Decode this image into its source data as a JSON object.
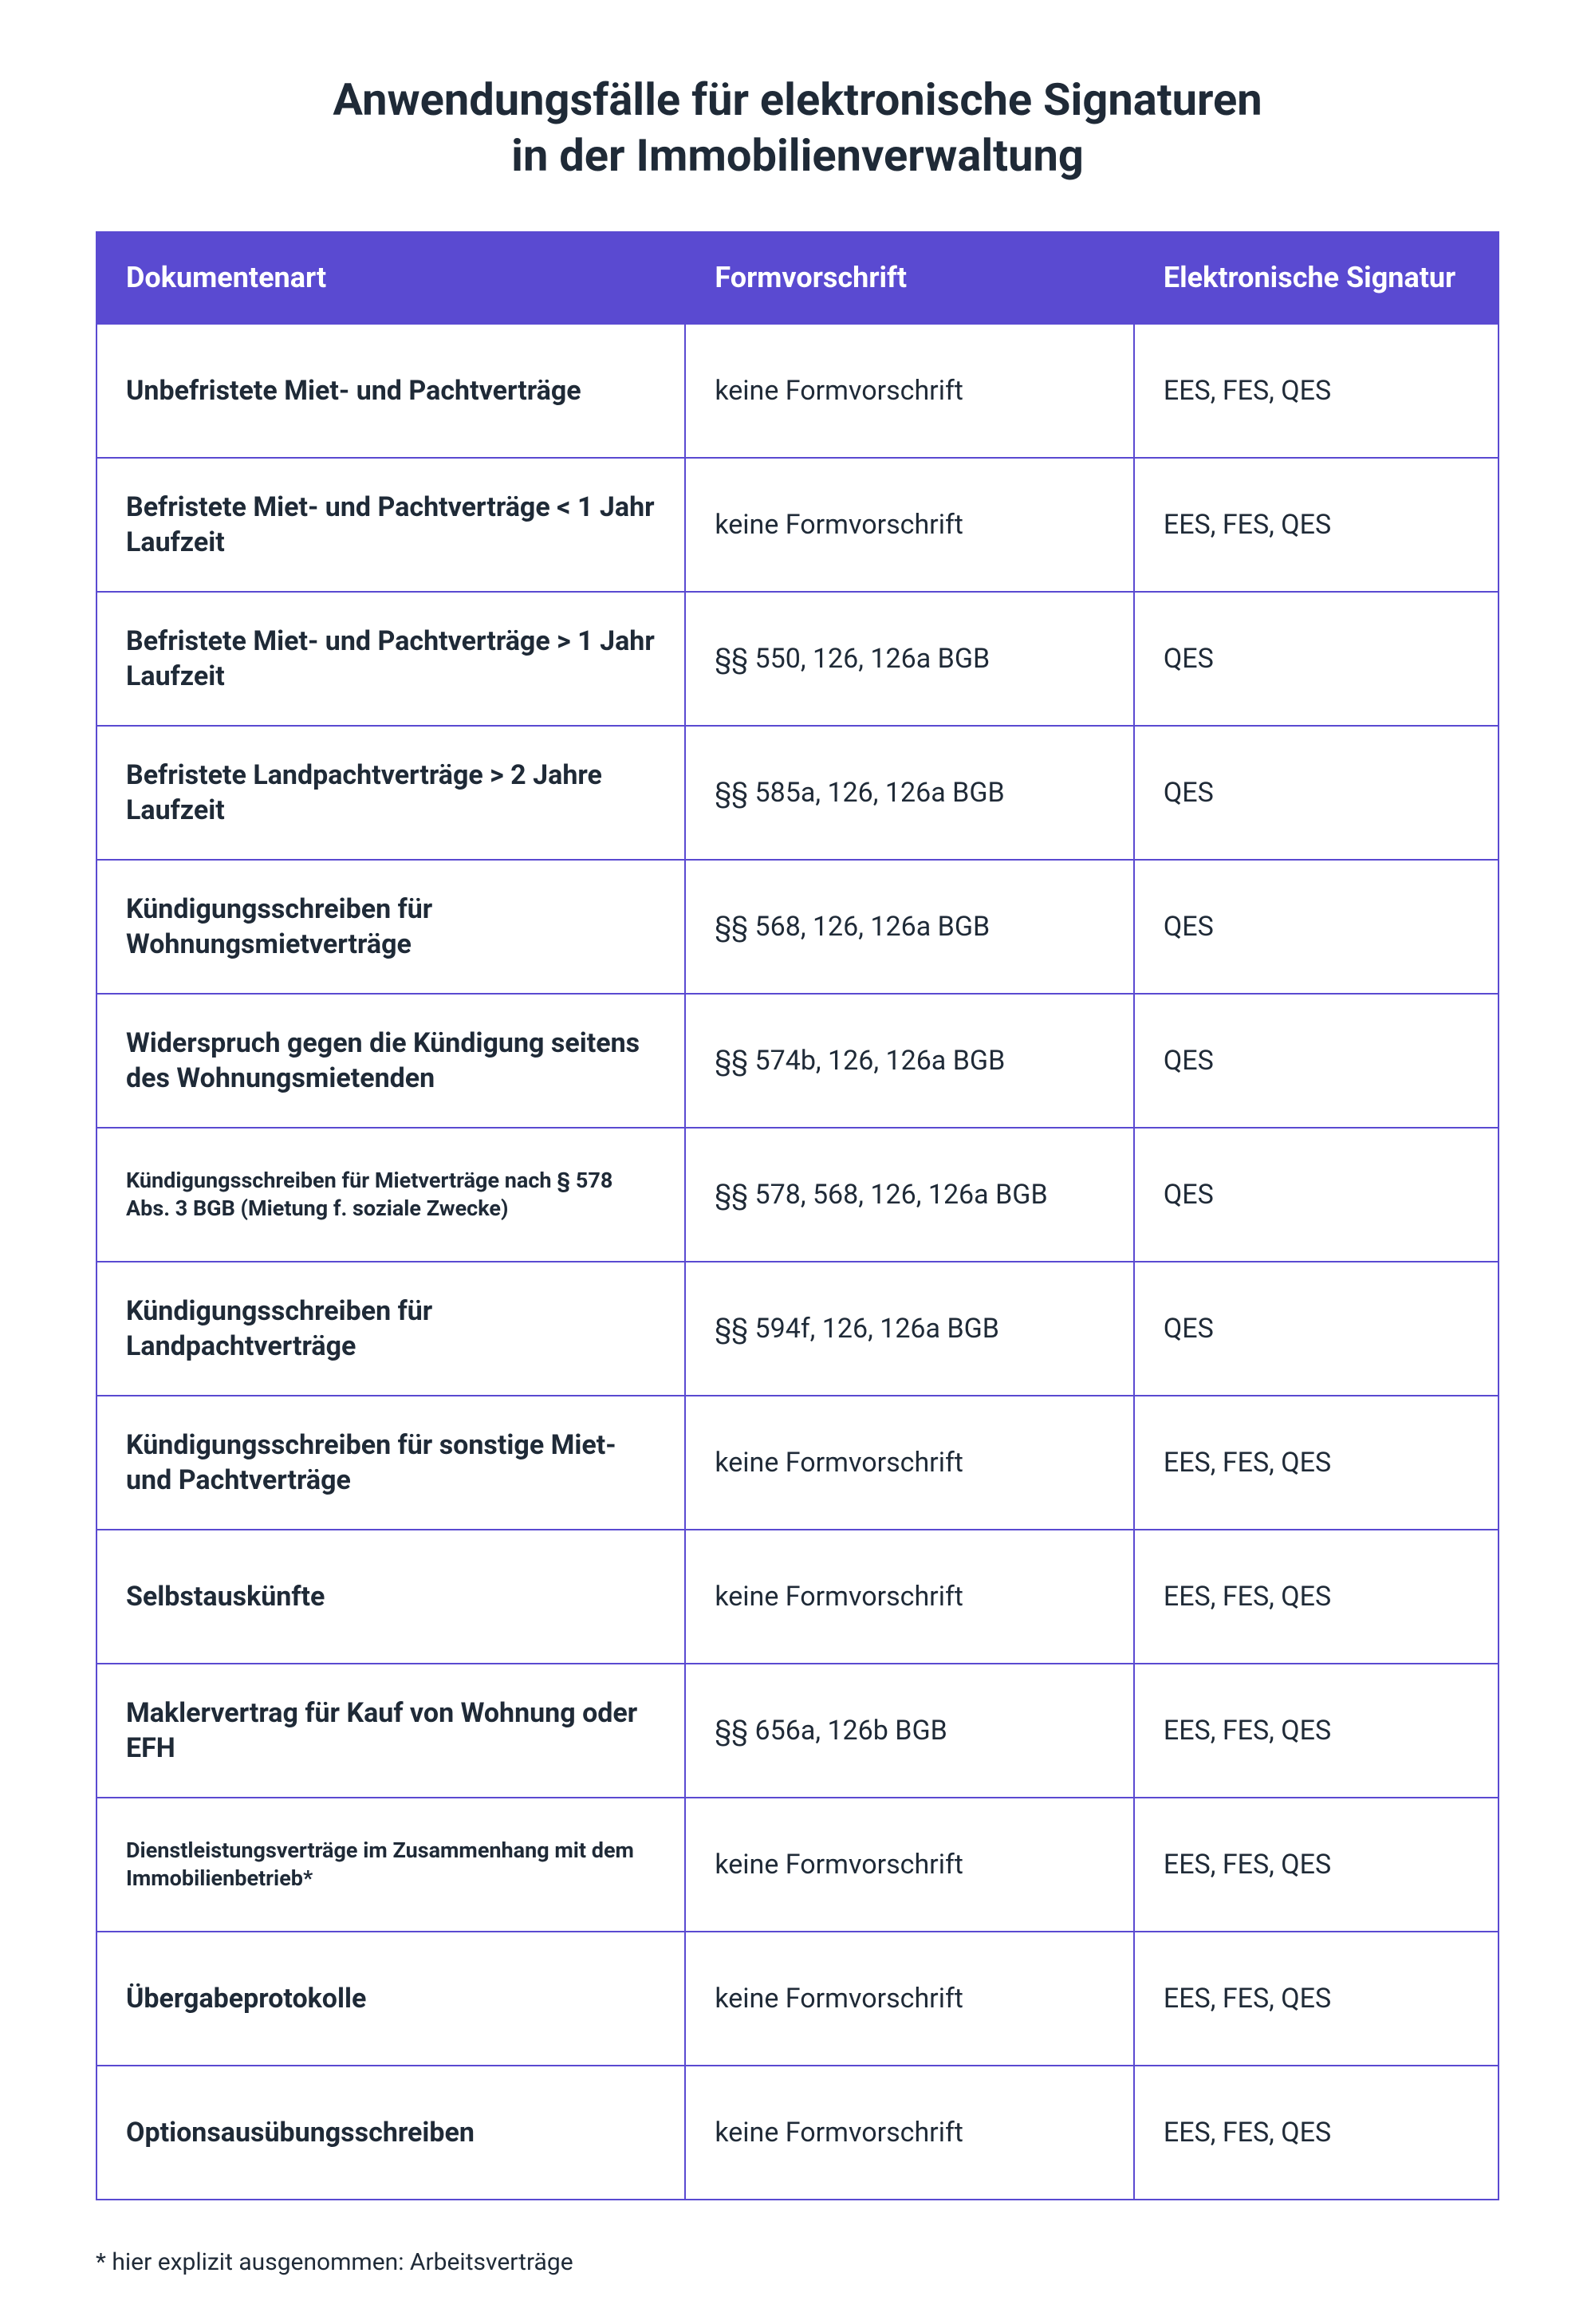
{
  "title_line1": "Anwendungsfälle für elektronische Signaturen",
  "title_line2": "in der Immobilienverwaltung",
  "colors": {
    "header_bg": "#5a4ad1",
    "border": "#5a4ad1",
    "text": "#1f2a37",
    "background": "#ffffff"
  },
  "columns": [
    "Dokumentenart",
    "Formvorschrift",
    "Elektronische Signatur"
  ],
  "rows": [
    {
      "doc": "Unbefristete Miet- und Pachtverträge",
      "form": "keine Formvorschrift",
      "sig": "EES, FES, QES",
      "small": false
    },
    {
      "doc": "Befristete Miet- und Pachtverträge < 1 Jahr Laufzeit",
      "form": "keine Formvorschrift",
      "sig": "EES, FES, QES",
      "small": false
    },
    {
      "doc": "Befristete Miet- und Pachtverträge > 1 Jahr Laufzeit",
      "form": "§§ 550, 126, 126a BGB",
      "sig": "QES",
      "small": false
    },
    {
      "doc": "Befristete Landpachtverträge > 2 Jahre Laufzeit",
      "form": "§§ 585a, 126, 126a BGB",
      "sig": "QES",
      "small": false
    },
    {
      "doc": "Kündigungsschreiben für Wohnungsmietverträge",
      "form": "§§ 568, 126, 126a BGB",
      "sig": "QES",
      "small": false
    },
    {
      "doc": "Widerspruch gegen die Kündigung seitens des Wohnungsmietenden",
      "form": "§§ 574b, 126, 126a BGB",
      "sig": "QES",
      "small": false
    },
    {
      "doc": "Kündigungsschreiben für Mietverträge nach § 578 Abs. 3 BGB (Mietung f. soziale Zwecke)",
      "form": "§§ 578, 568, 126, 126a BGB",
      "sig": "QES",
      "small": true
    },
    {
      "doc": "Kündigungsschreiben für Landpachtverträge",
      "form": "§§ 594f, 126, 126a BGB",
      "sig": "QES",
      "small": false
    },
    {
      "doc": "Kündigungsschreiben für sonstige Miet- und Pachtverträge",
      "form": "keine Formvorschrift",
      "sig": "EES, FES, QES",
      "small": false
    },
    {
      "doc": "Selbstauskünfte",
      "form": "keine Formvorschrift",
      "sig": "EES, FES, QES",
      "small": false
    },
    {
      "doc": "Maklervertrag für Kauf von Wohnung oder EFH",
      "form": "§§ 656a, 126b BGB",
      "sig": "EES, FES, QES",
      "small": false
    },
    {
      "doc": "Dienstleistungsverträge im Zusammenhang mit dem Immobilienbetrieb*",
      "form": "keine Formvorschrift",
      "sig": "EES, FES, QES",
      "small": true
    },
    {
      "doc": "Übergabeprotokolle",
      "form": "keine Formvorschrift",
      "sig": "EES, FES, QES",
      "small": false
    },
    {
      "doc": "Optionsausübungsschreiben",
      "form": "keine Formvorschrift",
      "sig": "EES, FES, QES",
      "small": false
    }
  ],
  "footnote": "* hier explizit ausgenommen: Arbeitsverträge"
}
